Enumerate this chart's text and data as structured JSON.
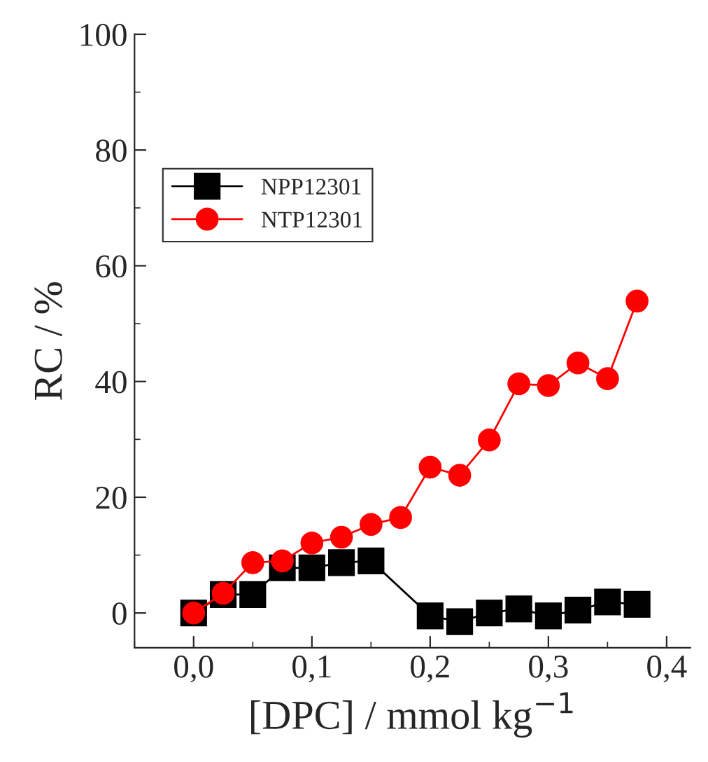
{
  "chart_data": {
    "type": "line",
    "xlabel": "[DPC] / mmol kg$^{−1}$",
    "ylabel": "RC / %",
    "xlim": [
      -0.05,
      0.42
    ],
    "ylim": [
      -6,
      100
    ],
    "xticks": [
      {
        "value": 0,
        "label": "0,0"
      },
      {
        "value": 0.1,
        "label": "0,1"
      },
      {
        "value": 0.2,
        "label": "0,2"
      },
      {
        "value": 0.3,
        "label": "0,3"
      },
      {
        "value": 0.4,
        "label": "0,4"
      }
    ],
    "yticks": [
      0,
      20,
      40,
      60,
      80,
      100
    ],
    "legend": "top left",
    "grid": false,
    "series": [
      {
        "name": "NPP12301",
        "color": "#000000",
        "marker": "square",
        "x": [
          0,
          0.025,
          0.05,
          0.075,
          0.1,
          0.125,
          0.15,
          0.2,
          0.225,
          0.25,
          0.275,
          0.3,
          0.325,
          0.35,
          0.375
        ],
        "values": [
          0,
          3.2,
          3.2,
          7.8,
          7.8,
          8.7,
          9,
          -0.5,
          -1.5,
          0,
          0.7,
          -0.5,
          0.5,
          1.9,
          1.5
        ]
      },
      {
        "name": "NTP12301",
        "color": "#ff0000",
        "marker": "circle",
        "x": [
          0,
          0.025,
          0.05,
          0.075,
          0.1,
          0.125,
          0.15,
          0.175,
          0.2,
          0.225,
          0.25,
          0.275,
          0.3,
          0.325,
          0.35,
          0.375
        ],
        "values": [
          0,
          3.4,
          8.7,
          9,
          12.1,
          13.1,
          15.3,
          16.5,
          25.2,
          23.8,
          29.9,
          39.6,
          39.3,
          43.2,
          40.5,
          53.9
        ]
      }
    ]
  }
}
